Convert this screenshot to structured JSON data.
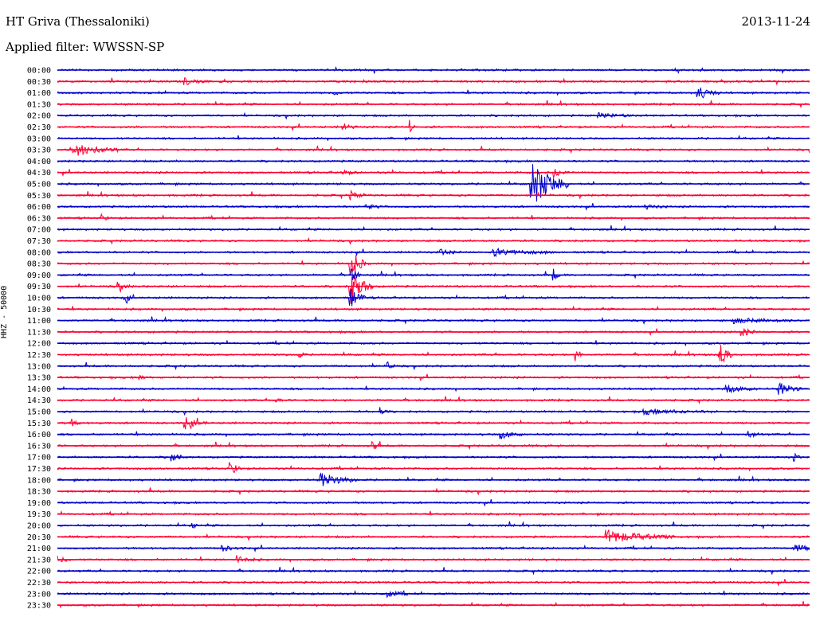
{
  "header": {
    "station": "HT Griva (Thessaloniki)",
    "date": "2013-11-24",
    "filter": "Applied filter: WWSSN-SP"
  },
  "chart_data": {
    "type": "line",
    "title": "HT Griva (Thessaloniki)",
    "ylabel": "HHZ - 50000",
    "xlabel": "",
    "colors": [
      "#0000cc",
      "#ff0033"
    ],
    "rows": [
      {
        "label": "00:00",
        "events": []
      },
      {
        "label": "00:30",
        "events": [
          {
            "t": 0.17,
            "amp": 4,
            "dur": 0.03
          }
        ]
      },
      {
        "label": "01:00",
        "events": [
          {
            "t": 0.85,
            "amp": 9,
            "dur": 0.03
          },
          {
            "t": 0.37,
            "amp": 3,
            "dur": 0.01
          }
        ]
      },
      {
        "label": "01:30",
        "events": []
      },
      {
        "label": "02:00",
        "events": [
          {
            "t": 0.72,
            "amp": 3,
            "dur": 0.05
          }
        ]
      },
      {
        "label": "02:30",
        "events": [
          {
            "t": 0.38,
            "amp": 4,
            "dur": 0.02
          },
          {
            "t": 0.47,
            "amp": 6,
            "dur": 0.005
          }
        ]
      },
      {
        "label": "03:00",
        "events": []
      },
      {
        "label": "03:30",
        "events": [
          {
            "t": 0.02,
            "amp": 9,
            "dur": 0.06
          }
        ]
      },
      {
        "label": "04:00",
        "events": []
      },
      {
        "label": "04:30",
        "events": [
          {
            "t": 0.38,
            "amp": 3,
            "dur": 0.02
          },
          {
            "t": 0.66,
            "amp": 6,
            "dur": 0.02
          }
        ]
      },
      {
        "label": "05:00",
        "events": [
          {
            "t": 0.63,
            "amp": 30,
            "dur": 0.05
          }
        ]
      },
      {
        "label": "05:30",
        "events": [
          {
            "t": 0.39,
            "amp": 5,
            "dur": 0.02
          }
        ]
      },
      {
        "label": "06:00",
        "events": [
          {
            "t": 0.41,
            "amp": 4,
            "dur": 0.02
          },
          {
            "t": 0.78,
            "amp": 3,
            "dur": 0.03
          }
        ]
      },
      {
        "label": "06:30",
        "events": [
          {
            "t": 0.06,
            "amp": 4,
            "dur": 0.01
          }
        ]
      },
      {
        "label": "07:00",
        "events": []
      },
      {
        "label": "07:30",
        "events": []
      },
      {
        "label": "08:00",
        "events": [
          {
            "t": 0.51,
            "amp": 4,
            "dur": 0.02
          },
          {
            "t": 0.58,
            "amp": 4,
            "dur": 0.08
          }
        ]
      },
      {
        "label": "08:30",
        "events": [
          {
            "t": 0.39,
            "amp": 20,
            "dur": 0.02
          }
        ]
      },
      {
        "label": "09:00",
        "events": [
          {
            "t": 0.39,
            "amp": 10,
            "dur": 0.015
          },
          {
            "t": 0.66,
            "amp": 6,
            "dur": 0.01
          }
        ]
      },
      {
        "label": "09:30",
        "events": [
          {
            "t": 0.39,
            "amp": 22,
            "dur": 0.03
          },
          {
            "t": 0.08,
            "amp": 5,
            "dur": 0.02
          }
        ]
      },
      {
        "label": "10:00",
        "events": [
          {
            "t": 0.09,
            "amp": 7,
            "dur": 0.01
          },
          {
            "t": 0.39,
            "amp": 12,
            "dur": 0.02
          }
        ]
      },
      {
        "label": "10:30",
        "events": []
      },
      {
        "label": "11:00",
        "events": [
          {
            "t": 0.9,
            "amp": 3,
            "dur": 0.09
          }
        ]
      },
      {
        "label": "11:30",
        "events": [
          {
            "t": 0.91,
            "amp": 5,
            "dur": 0.02
          }
        ]
      },
      {
        "label": "12:00",
        "events": []
      },
      {
        "label": "12:30",
        "events": [
          {
            "t": 0.88,
            "amp": 15,
            "dur": 0.02
          },
          {
            "t": 0.32,
            "amp": 5,
            "dur": 0.01
          },
          {
            "t": 0.69,
            "amp": 5,
            "dur": 0.01
          }
        ]
      },
      {
        "label": "13:00",
        "events": [
          {
            "t": 0.44,
            "amp": 4,
            "dur": 0.01
          }
        ]
      },
      {
        "label": "13:30",
        "events": [
          {
            "t": 0.11,
            "amp": 3,
            "dur": 0.01
          }
        ]
      },
      {
        "label": "14:00",
        "events": [
          {
            "t": 0.96,
            "amp": 8,
            "dur": 0.03
          },
          {
            "t": 0.89,
            "amp": 4,
            "dur": 0.05
          }
        ]
      },
      {
        "label": "14:30",
        "events": [
          {
            "t": 0.29,
            "amp": 4,
            "dur": 0.01
          }
        ]
      },
      {
        "label": "15:00",
        "events": [
          {
            "t": 0.43,
            "amp": 4,
            "dur": 0.01
          },
          {
            "t": 0.78,
            "amp": 3,
            "dur": 0.1
          }
        ]
      },
      {
        "label": "15:30",
        "events": [
          {
            "t": 0.17,
            "amp": 7,
            "dur": 0.03
          },
          {
            "t": 0.02,
            "amp": 5,
            "dur": 0.01
          }
        ]
      },
      {
        "label": "16:00",
        "events": [
          {
            "t": 0.59,
            "amp": 5,
            "dur": 0.03
          },
          {
            "t": 0.92,
            "amp": 3,
            "dur": 0.02
          }
        ]
      },
      {
        "label": "16:30",
        "events": [
          {
            "t": 0.42,
            "amp": 5,
            "dur": 0.01
          }
        ]
      },
      {
        "label": "17:00",
        "events": [
          {
            "t": 0.15,
            "amp": 6,
            "dur": 0.02
          },
          {
            "t": 0.98,
            "amp": 4,
            "dur": 0.01
          }
        ]
      },
      {
        "label": "17:30",
        "events": [
          {
            "t": 0.23,
            "amp": 9,
            "dur": 0.015
          }
        ]
      },
      {
        "label": "18:00",
        "events": [
          {
            "t": 0.35,
            "amp": 9,
            "dur": 0.05
          }
        ]
      },
      {
        "label": "18:30",
        "events": []
      },
      {
        "label": "19:00",
        "events": []
      },
      {
        "label": "19:30",
        "events": []
      },
      {
        "label": "20:00",
        "events": [
          {
            "t": 0.18,
            "amp": 3,
            "dur": 0.01
          }
        ]
      },
      {
        "label": "20:30",
        "events": [
          {
            "t": 0.73,
            "amp": 8,
            "dur": 0.09
          }
        ]
      },
      {
        "label": "21:00",
        "events": [
          {
            "t": 0.22,
            "amp": 3,
            "dur": 0.03
          },
          {
            "t": 0.98,
            "amp": 6,
            "dur": 0.03
          }
        ]
      },
      {
        "label": "21:30",
        "events": [
          {
            "t": 0.24,
            "amp": 4,
            "dur": 0.03
          },
          {
            "t": 0.0,
            "amp": 4,
            "dur": 0.02
          }
        ]
      },
      {
        "label": "22:00",
        "events": []
      },
      {
        "label": "22:30",
        "events": []
      },
      {
        "label": "23:00",
        "events": [
          {
            "t": 0.44,
            "amp": 3,
            "dur": 0.03
          }
        ]
      },
      {
        "label": "23:30",
        "events": []
      }
    ]
  }
}
